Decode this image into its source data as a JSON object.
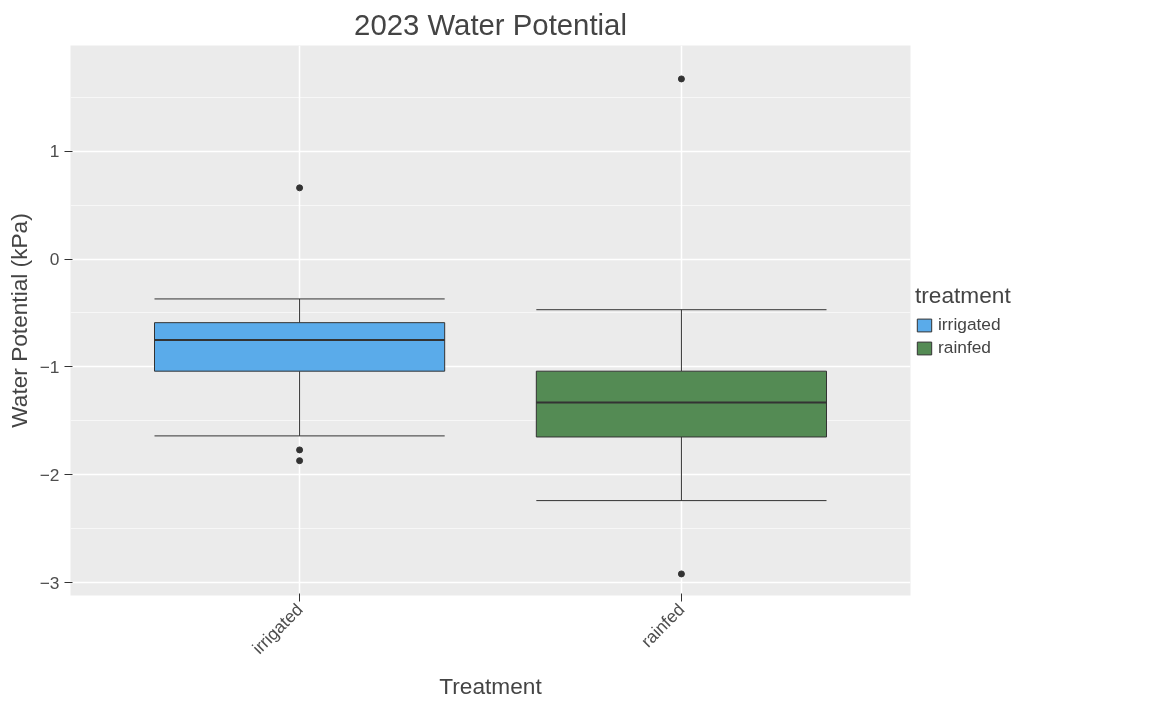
{
  "chart_data": {
    "type": "box",
    "title": "2023 Water Potential",
    "xlabel": "Treatment",
    "ylabel": "Water Potential (kPa)",
    "legend_title": "treatment",
    "categories": [
      "irrigated",
      "rainfed"
    ],
    "series": [
      {
        "name": "irrigated",
        "color": "#5aabea",
        "boxes": [
          {
            "low": -1.64,
            "q1": -1.04,
            "median": -0.75,
            "q3": -0.59,
            "high": -0.37,
            "outliers": [
              0.66,
              -1.77,
              -1.87
            ]
          },
          null
        ]
      },
      {
        "name": "rainfed",
        "color": "#548b54",
        "boxes": [
          null,
          {
            "low": -2.24,
            "q1": -1.65,
            "median": -1.33,
            "q3": -1.04,
            "high": -0.47,
            "outliers": [
              1.67,
              -2.92
            ]
          }
        ]
      }
    ],
    "ylim": [
      -3.12,
      1.98
    ],
    "yticks": [
      -3,
      -2,
      -1,
      0,
      1
    ],
    "grid": true,
    "legend": "right"
  }
}
